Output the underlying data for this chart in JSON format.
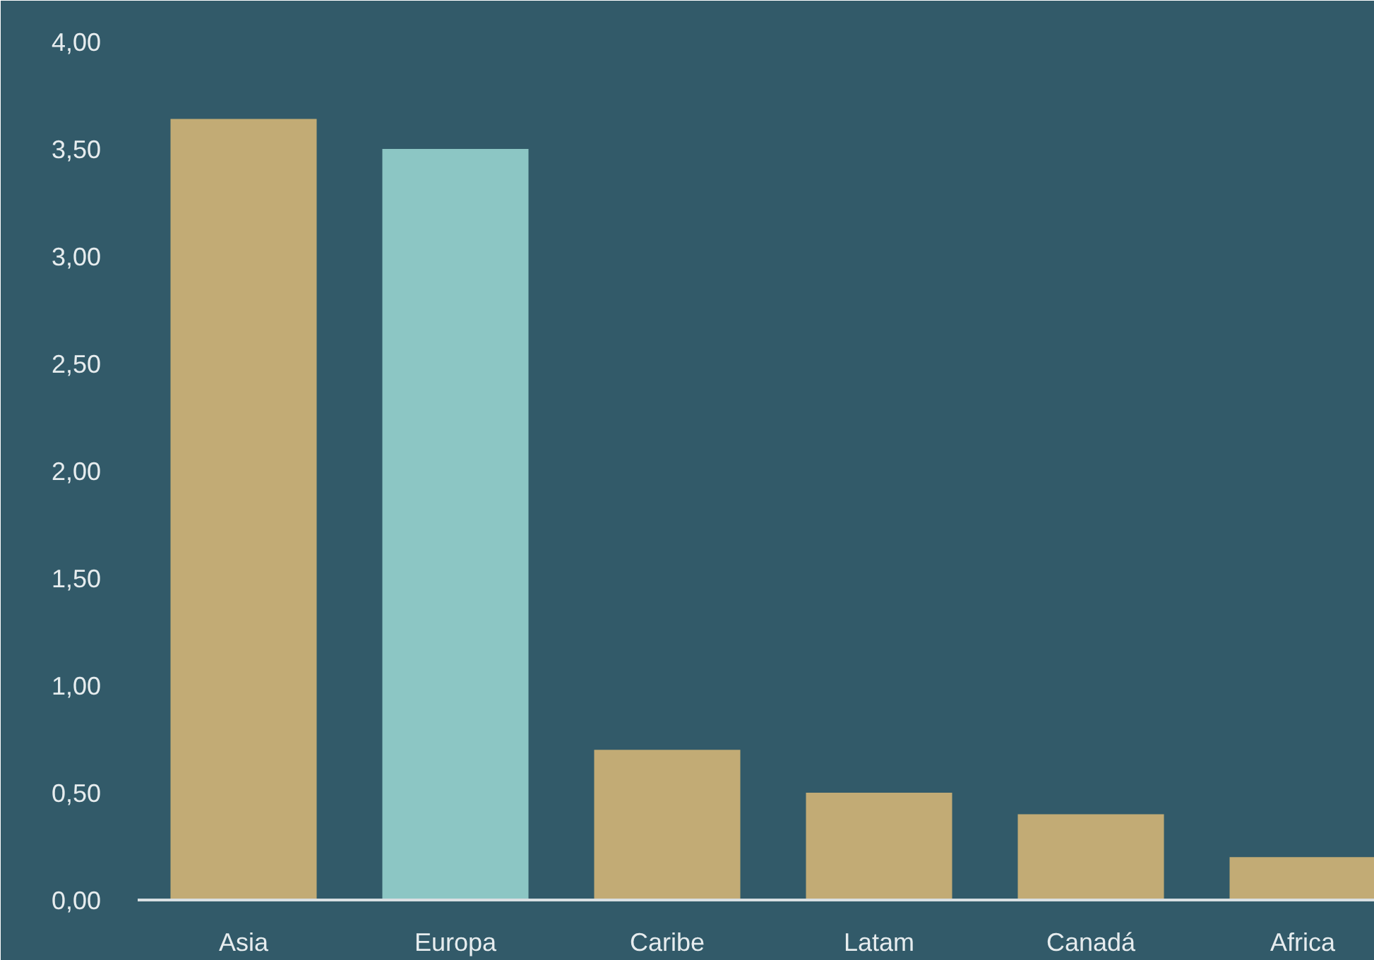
{
  "chart_data": {
    "type": "bar",
    "categories": [
      "Asia",
      "Europa",
      "Caribe",
      "Latam",
      "Canadá",
      "Africa"
    ],
    "values": [
      3.64,
      3.5,
      0.7,
      0.5,
      0.4,
      0.2
    ],
    "colors": [
      "#c2ab75",
      "#8cc6c4",
      "#c2ab75",
      "#c2ab75",
      "#c2ab75",
      "#c2ab75"
    ],
    "ylim": [
      0,
      4
    ],
    "yticks": [
      {
        "value": 0,
        "label": "0,00"
      },
      {
        "value": 0.5,
        "label": "0,50"
      },
      {
        "value": 1,
        "label": "1,00"
      },
      {
        "value": 1.5,
        "label": "1,50"
      },
      {
        "value": 2,
        "label": "2,00"
      },
      {
        "value": 2.5,
        "label": "2,50"
      },
      {
        "value": 3,
        "label": "3,00"
      },
      {
        "value": 3.5,
        "label": "3,50"
      },
      {
        "value": 4,
        "label": "4,00"
      }
    ],
    "grid": false
  }
}
